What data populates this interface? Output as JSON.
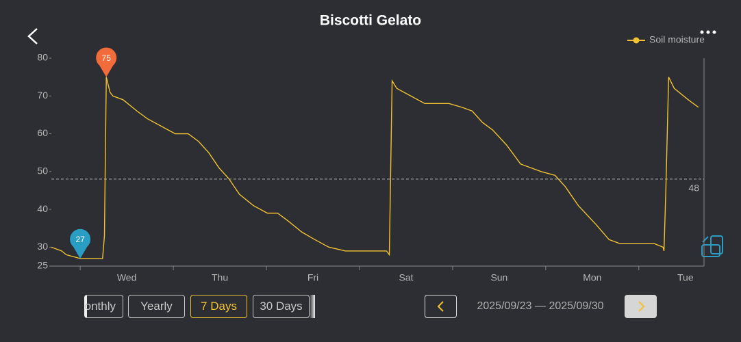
{
  "header": {
    "title": "Biscotti Gelato"
  },
  "chart_data": {
    "type": "line",
    "categories": [
      "Wed",
      "Thu",
      "Fri",
      "Sat",
      "Sun",
      "Mon",
      "Tue"
    ],
    "xlim": [
      -0.31,
      6.7
    ],
    "ylim": [
      25,
      80
    ],
    "yticks": [
      25,
      30,
      40,
      50,
      60,
      70,
      80
    ],
    "legend": "top-right",
    "series": [
      {
        "name": "Soil moisture",
        "color": "#f2c230",
        "x": [
          -0.31,
          -0.2,
          -0.15,
          0,
          0.24,
          0.26,
          0.28,
          0.32,
          0.35,
          0.46,
          0.61,
          0.72,
          0.87,
          1.02,
          1.16,
          1.27,
          1.38,
          1.49,
          1.6,
          1.71,
          1.86,
          2.01,
          2.12,
          2.23,
          2.38,
          2.52,
          2.67,
          2.85,
          3.29,
          3.32,
          3.35,
          3.4,
          3.55,
          3.7,
          3.96,
          4.1,
          4.21,
          4.32,
          4.43,
          4.58,
          4.73,
          4.95,
          5.1,
          5.21,
          5.35,
          5.54,
          5.68,
          5.79,
          6.16,
          6.26,
          6.27,
          6.29,
          6.32,
          6.38,
          6.53,
          6.64
        ],
        "values": [
          30,
          29,
          28,
          27,
          27,
          33,
          75,
          71,
          70,
          69,
          66,
          64,
          62,
          60,
          60,
          58,
          55,
          51,
          48,
          44,
          41,
          39,
          39,
          37,
          34,
          32,
          30,
          29,
          29,
          28,
          74,
          72,
          70,
          68,
          68,
          67,
          66,
          63,
          61,
          57,
          52,
          50,
          49,
          46,
          41,
          36,
          32,
          31,
          31,
          30,
          29,
          45,
          75,
          72,
          69,
          67
        ]
      }
    ],
    "threshold": 48,
    "pins": [
      {
        "value": 75,
        "x": 0.28,
        "color": "#f26b3a"
      },
      {
        "value": 27,
        "x": 0,
        "color": "#2a9dc4"
      }
    ]
  },
  "controls": {
    "ranges": [
      "onthly",
      "Yearly",
      "7 Days",
      "30 Days"
    ],
    "selected": 2,
    "date_range": "2025/09/23 — 2025/09/30"
  }
}
